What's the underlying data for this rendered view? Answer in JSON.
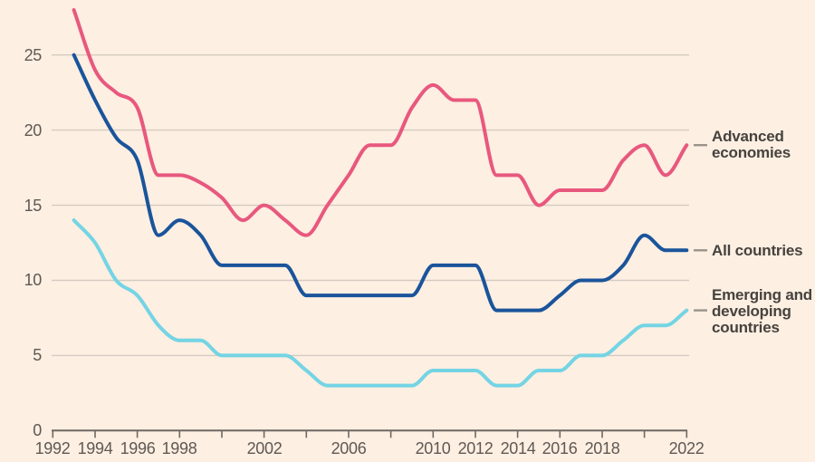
{
  "page": {
    "background": "#FDEFE2"
  },
  "chart": {
    "legend": [
      {
        "label": "Advanced economies",
        "color": "#E8587E"
      },
      {
        "label": "All countries",
        "color": "#1A549B"
      },
      {
        "label": "Emerging and developing countries",
        "color": "#74D4E4"
      }
    ]
  },
  "chart_data": {
    "type": "line",
    "title": "",
    "xlabel": "",
    "ylabel": "",
    "x_years": [
      1993,
      1994,
      1995,
      1996,
      1997,
      1998,
      1999,
      2000,
      2001,
      2002,
      2003,
      2004,
      2005,
      2006,
      2007,
      2008,
      2009,
      2010,
      2011,
      2012,
      2013,
      2014,
      2015,
      2016,
      2017,
      2018,
      2019,
      2020,
      2021,
      2022
    ],
    "series": [
      {
        "name": "Advanced economies",
        "color": "#E8587E",
        "values": [
          28,
          24,
          22.5,
          21.5,
          17,
          17,
          16.5,
          15.5,
          14,
          15,
          14,
          13,
          15,
          17,
          19,
          19,
          21.5,
          23,
          22,
          22,
          17,
          17,
          15,
          16,
          16,
          16,
          18,
          19,
          17,
          19
        ]
      },
      {
        "name": "All countries",
        "color": "#1A549B",
        "values": [
          25,
          22,
          19.5,
          18,
          13,
          14,
          13,
          11,
          11,
          11,
          11,
          9,
          9,
          9,
          9,
          9,
          9,
          11,
          11,
          11,
          8,
          8,
          8,
          9,
          10,
          10,
          11,
          13,
          12,
          12
        ]
      },
      {
        "name": "Emerging and developing countries",
        "color": "#74D4E4",
        "values": [
          14,
          12.5,
          10,
          9,
          7,
          6,
          6,
          5,
          5,
          5,
          5,
          4,
          3,
          3,
          3,
          3,
          3,
          4,
          4,
          4,
          3,
          3,
          4,
          4,
          5,
          5,
          6,
          7,
          7,
          8
        ]
      }
    ],
    "xticks": [
      {
        "year": 1992,
        "label": "1992"
      },
      {
        "year": 1994,
        "label": "1994"
      },
      {
        "year": 1996,
        "label": "1996"
      },
      {
        "year": 1998,
        "label": "1998"
      },
      {
        "year": 2000,
        "label": ""
      },
      {
        "year": 2002,
        "label": "2002"
      },
      {
        "year": 2004,
        "label": ""
      },
      {
        "year": 2006,
        "label": "2006"
      },
      {
        "year": 2008,
        "label": ""
      },
      {
        "year": 2010,
        "label": "2010"
      },
      {
        "year": 2012,
        "label": "2012"
      },
      {
        "year": 2014,
        "label": "2014"
      },
      {
        "year": 2016,
        "label": "2016"
      },
      {
        "year": 2018,
        "label": "2018"
      },
      {
        "year": 2020,
        "label": ""
      },
      {
        "year": 2022,
        "label": "2022"
      }
    ],
    "yticks": [
      0,
      5,
      10,
      15,
      20,
      25
    ],
    "xlim": [
      1992,
      2022
    ],
    "ylim": [
      0,
      28.5
    ],
    "grid": "horizontal-only",
    "legend_position": "right",
    "styles": {
      "background": "#FDEFE2",
      "gridline": "#D5CBC0",
      "axis": "#6E6862",
      "tick_text": "#5F5953",
      "legend_text": "#46423E",
      "legend_dash": "#9B948C"
    }
  }
}
